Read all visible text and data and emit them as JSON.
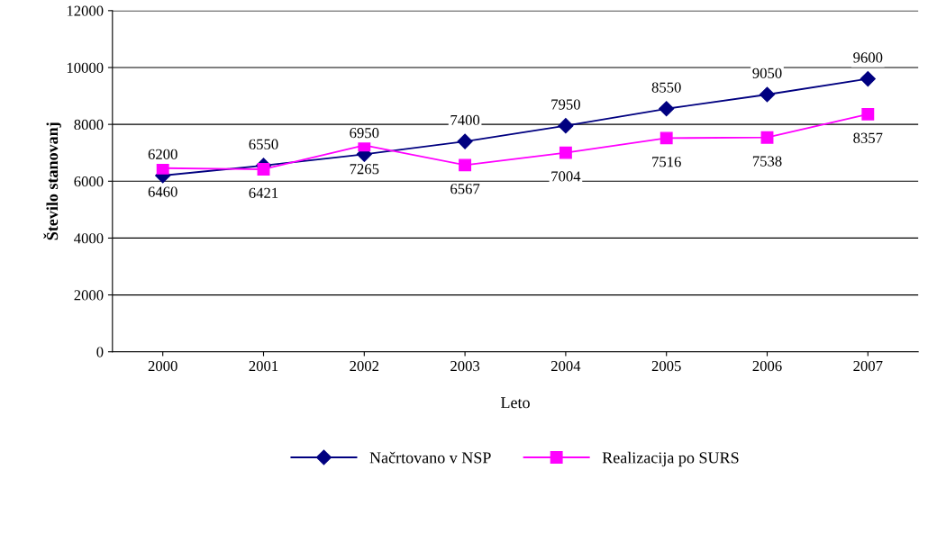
{
  "chart_data": {
    "type": "line",
    "xlabel": "Leto",
    "ylabel": "Število stanovanj",
    "categories": [
      "2000",
      "2001",
      "2002",
      "2003",
      "2004",
      "2005",
      "2006",
      "2007"
    ],
    "series": [
      {
        "name": "Načrtovano v NSP",
        "color": "#000080",
        "marker": "diamond",
        "values": [
          6200,
          6550,
          6950,
          7400,
          7950,
          8550,
          9050,
          9600
        ]
      },
      {
        "name": "Realizacija po SURS",
        "color": "#ff00ff",
        "marker": "square",
        "values": [
          6460,
          6421,
          7265,
          6567,
          7004,
          7516,
          7538,
          8357
        ]
      }
    ],
    "ylim": [
      0,
      12000
    ],
    "yticks": [
      0,
      2000,
      4000,
      6000,
      8000,
      10000,
      12000
    ],
    "grid": "y",
    "legend": "bottom",
    "data_labels": true
  }
}
